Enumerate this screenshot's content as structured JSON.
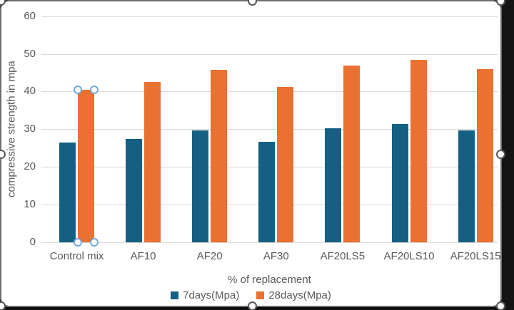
{
  "chart_data": {
    "type": "bar",
    "title": "",
    "categories": [
      "Control mix",
      "AF10",
      "AF20",
      "AF30",
      "AF20LS5",
      "AF20LS10",
      "AF20LS15"
    ],
    "series": [
      {
        "name": "7days(Mpa)",
        "color": "#156082",
        "values": [
          26.5,
          27.5,
          29.7,
          26.7,
          30.3,
          31.3,
          29.7
        ]
      },
      {
        "name": "28days(Mpa)",
        "color": "#E97132",
        "values": [
          40.5,
          42.5,
          45.7,
          41.2,
          46.8,
          48.3,
          46.0
        ]
      }
    ],
    "xlabel": "% of replacement",
    "ylabel": "compressive strength in mpa",
    "ylim": [
      0,
      60
    ],
    "ytick_step": 10,
    "ytick_labels": [
      "0",
      "10",
      "20",
      "30",
      "40",
      "50",
      "60"
    ],
    "grid": true,
    "legend_position": "bottom"
  },
  "selection": {
    "chart_selected": true,
    "selected_point": {
      "series_index": 1,
      "category_index": 0,
      "series": "28days(Mpa)",
      "category": "Control mix",
      "value": 40.5
    }
  },
  "colors": {
    "axis_text": "#595959",
    "gridline": "#d9d9d9",
    "chart_background": "#ffffff",
    "outside_background": "#141414",
    "frame_border": "#6e6e6e",
    "chart_handle_ring": "#595959",
    "point_handle_ring": "#74a9de"
  }
}
